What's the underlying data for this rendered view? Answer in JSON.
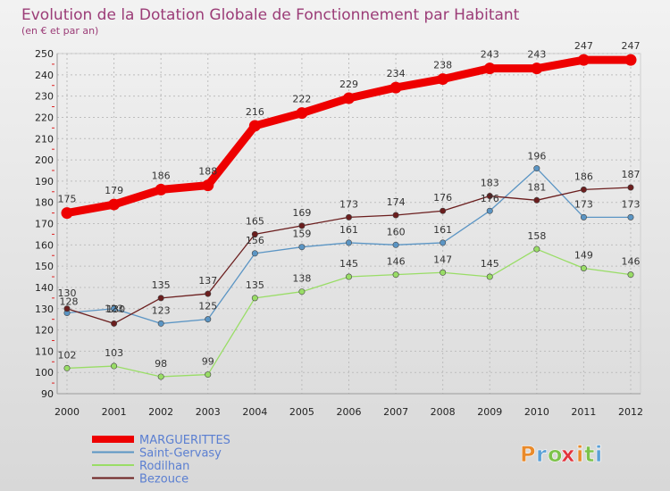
{
  "chart_data": {
    "type": "line",
    "title": "Evolution de la Dotation Globale de Fonctionnement par Habitant",
    "subtitle": "(en € et par an)",
    "x": [
      "2000",
      "2001",
      "2002",
      "2003",
      "2004",
      "2005",
      "2006",
      "2007",
      "2008",
      "2009",
      "2010",
      "2011",
      "2012"
    ],
    "ylim": [
      90,
      250
    ],
    "yticks": [
      90,
      100,
      110,
      120,
      130,
      140,
      150,
      160,
      170,
      180,
      190,
      200,
      210,
      220,
      230,
      240,
      250
    ],
    "grid": true,
    "legend": "bottom-left",
    "series": [
      {
        "name": "MARGUERITTES",
        "color": "#ee0000",
        "values": [
          175,
          179,
          186,
          188,
          216,
          222,
          229,
          234,
          238,
          243,
          243,
          247,
          247
        ]
      },
      {
        "name": "Saint-Gervasy",
        "color": "#5b95c4",
        "values": [
          128,
          130,
          123,
          125,
          156,
          159,
          161,
          160,
          161,
          176,
          196,
          173,
          173
        ]
      },
      {
        "name": "Rodilhan",
        "color": "#99dd66",
        "values": [
          102,
          103,
          98,
          99,
          135,
          138,
          145,
          146,
          147,
          145,
          158,
          149,
          146
        ]
      },
      {
        "name": "Bezouce",
        "color": "#6b1e1e",
        "values": [
          130,
          123,
          135,
          137,
          165,
          169,
          173,
          174,
          176,
          183,
          181,
          186,
          187
        ]
      }
    ]
  },
  "brand": {
    "letters": [
      "P",
      "r",
      "o",
      "x",
      "i",
      "t",
      "i"
    ]
  }
}
